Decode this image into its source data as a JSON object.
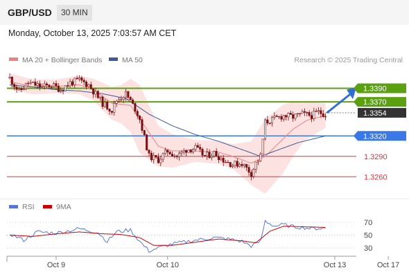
{
  "header": {
    "pair": "GBP/USD",
    "timeframe": "30 MIN",
    "datetime": "Monday, October 13, 2025 7:03:57 AM CET",
    "credit": "Research © 2025 Trading Central"
  },
  "colors": {
    "bollinger": "#f08080",
    "bands_fill": "#fde2e2",
    "ma50": "#3d5a99",
    "candle": "#7a0f0f",
    "resistance": "#5aa010",
    "support_pivot": "#3b78e7",
    "support_red": "#e0303a",
    "rsi": "#5577dd",
    "rsi_ma": "#cc0000",
    "arrow": "#2f6fd0"
  },
  "chart_data": [
    {
      "type": "candlestick",
      "legend": [
        {
          "name": "MA 20 + Bollinger Bands",
          "color": "#f08080"
        },
        {
          "name": "MA 50",
          "color": "#3d5a99"
        }
      ],
      "ylim": [
        1.3245,
        1.3418
      ],
      "x_ticks": [
        {
          "label": "Oct 9",
          "x": 20
        },
        {
          "label": "Oct 10",
          "x": 68
        },
        {
          "label": "Oct 13",
          "x": 140
        },
        {
          "label": "Oct 17",
          "x": 163
        }
      ],
      "levels": [
        {
          "label": "1.3390",
          "value": 1.339,
          "kind": "resistance",
          "style": "badge"
        },
        {
          "label": "1.3370",
          "value": 1.337,
          "kind": "resistance",
          "style": "badge"
        },
        {
          "label": "1.3354",
          "value": 1.3354,
          "kind": "current",
          "style": "badge"
        },
        {
          "label": "1.3320",
          "value": 1.332,
          "kind": "pivot",
          "style": "badge"
        },
        {
          "label": "1.3290",
          "value": 1.329,
          "kind": "support",
          "style": "text"
        },
        {
          "label": "1.3260",
          "value": 1.326,
          "kind": "support",
          "style": "text"
        }
      ],
      "key_points": [
        [
          0,
          1.3405
        ],
        [
          4,
          1.3385
        ],
        [
          8,
          1.3398
        ],
        [
          14,
          1.3392
        ],
        [
          18,
          1.3395
        ],
        [
          22,
          1.3388
        ],
        [
          26,
          1.3398
        ],
        [
          30,
          1.3402
        ],
        [
          34,
          1.3395
        ],
        [
          40,
          1.3368
        ],
        [
          44,
          1.3358
        ],
        [
          46,
          1.3372
        ],
        [
          50,
          1.3382
        ],
        [
          54,
          1.336
        ],
        [
          56,
          1.3345
        ],
        [
          60,
          1.329
        ],
        [
          64,
          1.3285
        ],
        [
          68,
          1.3298
        ],
        [
          72,
          1.329
        ],
        [
          76,
          1.33
        ],
        [
          80,
          1.3302
        ],
        [
          84,
          1.329
        ],
        [
          88,
          1.3295
        ],
        [
          92,
          1.3285
        ],
        [
          96,
          1.3278
        ],
        [
          100,
          1.328
        ],
        [
          104,
          1.3265
        ],
        [
          106,
          1.328
        ],
        [
          108,
          1.329
        ],
        [
          110,
          1.334
        ],
        [
          114,
          1.3345
        ],
        [
          118,
          1.335
        ],
        [
          122,
          1.3348
        ],
        [
          126,
          1.3352
        ],
        [
          130,
          1.335
        ],
        [
          133,
          1.3355
        ],
        [
          136,
          1.3352
        ]
      ],
      "ma20_points": [
        [
          0,
          1.34
        ],
        [
          10,
          1.3392
        ],
        [
          20,
          1.3393
        ],
        [
          30,
          1.3395
        ],
        [
          36,
          1.3388
        ],
        [
          44,
          1.3368
        ],
        [
          52,
          1.3365
        ],
        [
          56,
          1.3345
        ],
        [
          60,
          1.3325
        ],
        [
          64,
          1.3305
        ],
        [
          70,
          1.3298
        ],
        [
          80,
          1.3298
        ],
        [
          90,
          1.3296
        ],
        [
          96,
          1.329
        ],
        [
          104,
          1.328
        ],
        [
          110,
          1.329
        ],
        [
          116,
          1.331
        ],
        [
          122,
          1.333
        ],
        [
          128,
          1.3343
        ],
        [
          136,
          1.335
        ]
      ],
      "ma50_points": [
        [
          0,
          1.3395
        ],
        [
          10,
          1.3392
        ],
        [
          20,
          1.3388
        ],
        [
          30,
          1.3386
        ],
        [
          40,
          1.3382
        ],
        [
          50,
          1.3375
        ],
        [
          60,
          1.3352
        ],
        [
          70,
          1.3335
        ],
        [
          80,
          1.3322
        ],
        [
          90,
          1.3312
        ],
        [
          100,
          1.33
        ],
        [
          108,
          1.329
        ],
        [
          116,
          1.33
        ],
        [
          124,
          1.331
        ],
        [
          136,
          1.332
        ]
      ],
      "band_width": [
        [
          0,
          0.0012
        ],
        [
          20,
          0.001
        ],
        [
          36,
          0.0016
        ],
        [
          48,
          0.0028
        ],
        [
          56,
          0.005
        ],
        [
          64,
          0.003
        ],
        [
          80,
          0.0016
        ],
        [
          96,
          0.0018
        ],
        [
          104,
          0.0032
        ],
        [
          110,
          0.0055
        ],
        [
          118,
          0.005
        ],
        [
          126,
          0.003
        ],
        [
          136,
          0.0018
        ]
      ]
    },
    {
      "type": "line",
      "legend": [
        {
          "name": "RSI",
          "color": "#5577dd"
        },
        {
          "name": "9MA",
          "color": "#cc0000"
        }
      ],
      "ylim": [
        20,
        80
      ],
      "y_ticks": [
        {
          "label": "70",
          "value": 70
        },
        {
          "label": "50",
          "value": 50
        },
        {
          "label": "30",
          "value": 30
        }
      ],
      "rsi_points": [
        [
          0,
          52
        ],
        [
          6,
          42
        ],
        [
          12,
          55
        ],
        [
          20,
          53
        ],
        [
          30,
          60
        ],
        [
          38,
          54
        ],
        [
          42,
          40
        ],
        [
          46,
          55
        ],
        [
          52,
          58
        ],
        [
          56,
          40
        ],
        [
          60,
          25
        ],
        [
          64,
          30
        ],
        [
          70,
          36
        ],
        [
          80,
          42
        ],
        [
          88,
          46
        ],
        [
          94,
          44
        ],
        [
          100,
          40
        ],
        [
          104,
          33
        ],
        [
          108,
          40
        ],
        [
          110,
          72
        ],
        [
          114,
          64
        ],
        [
          118,
          66
        ],
        [
          122,
          63
        ],
        [
          126,
          62
        ],
        [
          130,
          60
        ],
        [
          136,
          61
        ]
      ],
      "rsi_ma_points": [
        [
          0,
          50
        ],
        [
          10,
          48
        ],
        [
          20,
          52
        ],
        [
          30,
          55
        ],
        [
          40,
          52
        ],
        [
          48,
          51
        ],
        [
          56,
          46
        ],
        [
          62,
          34
        ],
        [
          70,
          34
        ],
        [
          80,
          39
        ],
        [
          90,
          44
        ],
        [
          100,
          41
        ],
        [
          106,
          38
        ],
        [
          112,
          56
        ],
        [
          118,
          64
        ],
        [
          126,
          63
        ],
        [
          136,
          62
        ]
      ]
    }
  ]
}
